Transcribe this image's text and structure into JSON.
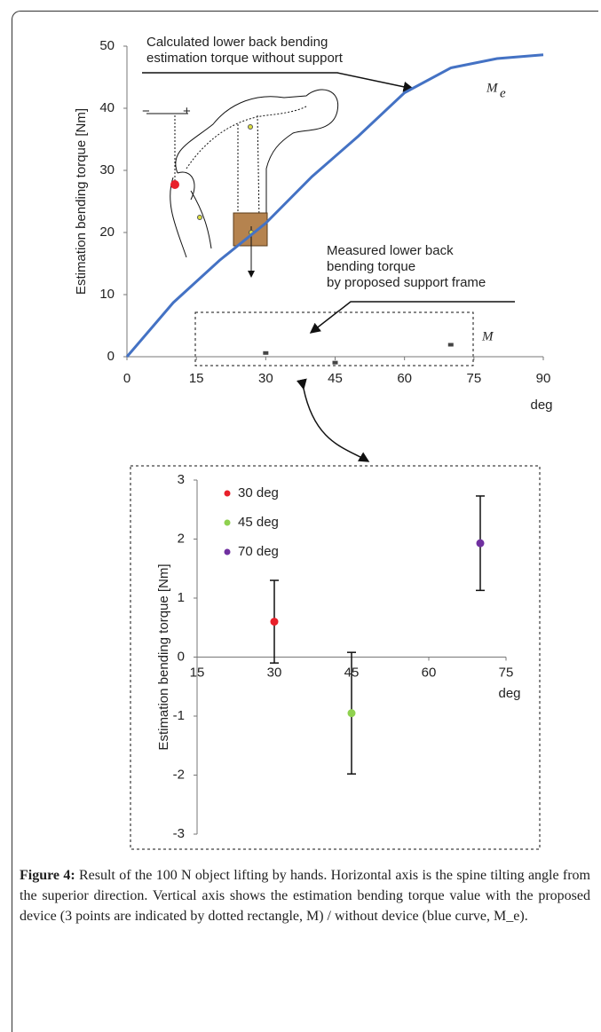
{
  "figure": {
    "label": "Figure 4:",
    "caption": "Result of the 100 N object lifting by hands. Horizontal axis is the spine tilting angle from the superior direction. Vertical axis shows the estimation bending torque value with the proposed device (3 points are indicated by dotted rectangle, M) / without device (blue curve, M_e)."
  },
  "chart_data": [
    {
      "type": "line",
      "y_label": "Estimation bending torque [Nm]",
      "x_label": "deg",
      "x": [
        0,
        10,
        20,
        30,
        40,
        50,
        60,
        70,
        80,
        90
      ],
      "series": [
        {
          "color": "#4472c4",
          "values": [
            0,
            8.7,
            15.5,
            21.5,
            29,
            35.5,
            42.5,
            46.5,
            48,
            48.6
          ]
        }
      ],
      "measured": {
        "x": [
          30,
          45,
          70
        ],
        "values": [
          0.6,
          -0.95,
          1.93
        ]
      },
      "xlim": [
        0,
        90
      ],
      "xticks": [
        0,
        15,
        30,
        45,
        60,
        75,
        90
      ],
      "ylim": [
        0,
        50
      ],
      "yticks": [
        0,
        10,
        20,
        30,
        40,
        50
      ],
      "annotations": [
        {
          "lines": [
            "Calculated lower back bending",
            "estimation torque without support"
          ]
        },
        {
          "lines": [
            "Measured lower back",
            "bending torque",
            "by proposed support frame"
          ]
        }
      ],
      "curve_label": {
        "text": "M",
        "sub": "e"
      },
      "points_label": "M",
      "illustration": {
        "minus": "−",
        "plus": "+"
      }
    },
    {
      "type": "scatter",
      "y_label": "Estimation bending torque [Nm]",
      "x_label": "deg",
      "series": [
        {
          "name": "30 deg",
          "color": "#e8202a",
          "x": [
            30
          ],
          "values": [
            0.6
          ],
          "errors": [
            0.7
          ]
        },
        {
          "name": "45 deg",
          "color": "#8fd14f",
          "x": [
            45
          ],
          "values": [
            -0.95
          ],
          "errors": [
            1.03
          ]
        },
        {
          "name": "70 deg",
          "color": "#7030a0",
          "x": [
            70
          ],
          "values": [
            1.93
          ],
          "errors": [
            0.8
          ]
        }
      ],
      "xlim": [
        15,
        75
      ],
      "xticks": [
        15,
        30,
        45,
        60,
        75
      ],
      "ylim": [
        -3,
        3
      ],
      "yticks": [
        -3,
        -2,
        -1,
        0,
        1,
        2,
        3
      ],
      "legend": "upper left"
    }
  ]
}
